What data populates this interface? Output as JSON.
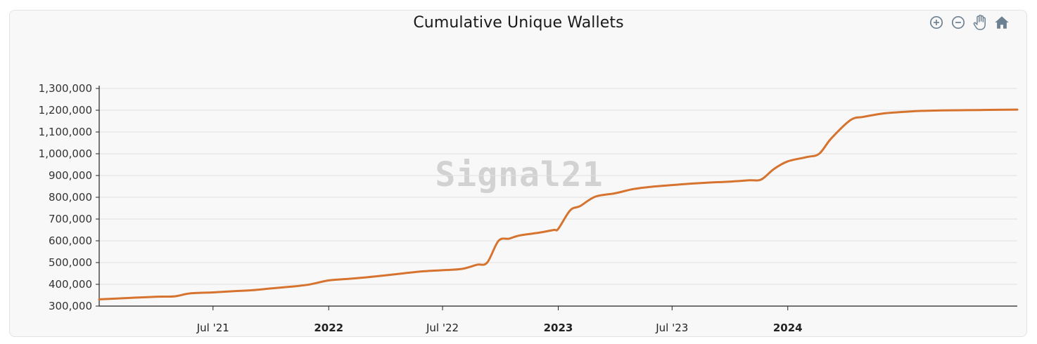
{
  "title": "Cumulative Unique Wallets",
  "watermark": "Signal21",
  "toolbar": {
    "zoom_in": "zoom-in-icon",
    "zoom_out": "zoom-out-icon",
    "pan": "pan-hand-icon",
    "reset": "home-icon"
  },
  "colors": {
    "line": "#d5732f",
    "grid": "#e1e1e1",
    "axis": "#222222",
    "watermark": "#d2d2d2"
  },
  "chart_data": {
    "type": "line",
    "title": "Cumulative Unique Wallets",
    "xlabel": "",
    "ylabel": "",
    "ylim": [
      300000,
      1300000
    ],
    "xlim": [
      "2021-01-01",
      "2024-12-31"
    ],
    "grid": true,
    "legend": "none",
    "y_ticks": [
      "1,300,000",
      "1,200,000",
      "1,100,000",
      "1,000,000",
      "900,000",
      "800,000",
      "700,000",
      "600,000",
      "500,000",
      "400,000",
      "300,000"
    ],
    "y_tick_values": [
      1300000,
      1200000,
      1100000,
      1000000,
      900000,
      800000,
      700000,
      600000,
      500000,
      400000,
      300000
    ],
    "x_ticks": [
      {
        "label": "Jul '21",
        "date": "2021-07-01",
        "bold": false
      },
      {
        "label": "2022",
        "date": "2022-01-01",
        "bold": true
      },
      {
        "label": "Jul '22",
        "date": "2022-07-01",
        "bold": false
      },
      {
        "label": "2023",
        "date": "2023-01-01",
        "bold": true
      },
      {
        "label": "Jul '23",
        "date": "2023-07-01",
        "bold": false
      },
      {
        "label": "2024",
        "date": "2024-01-01",
        "bold": true
      }
    ],
    "series": [
      {
        "points": [
          [
            "2021-01-01",
            331000
          ],
          [
            "2021-02-01",
            335000
          ],
          [
            "2021-03-01",
            339000
          ],
          [
            "2021-04-01",
            343000
          ],
          [
            "2021-05-01",
            345000
          ],
          [
            "2021-05-25",
            358000
          ],
          [
            "2021-07-01",
            363000
          ],
          [
            "2021-08-01",
            368000
          ],
          [
            "2021-09-01",
            373000
          ],
          [
            "2021-10-01",
            381000
          ],
          [
            "2021-11-01",
            389000
          ],
          [
            "2021-12-01",
            399000
          ],
          [
            "2022-01-01",
            418000
          ],
          [
            "2022-02-01",
            425000
          ],
          [
            "2022-03-01",
            432000
          ],
          [
            "2022-04-01",
            441000
          ],
          [
            "2022-05-01",
            451000
          ],
          [
            "2022-06-01",
            460000
          ],
          [
            "2022-07-01",
            465000
          ],
          [
            "2022-08-01",
            471000
          ],
          [
            "2022-08-25",
            490000
          ],
          [
            "2022-09-10",
            500000
          ],
          [
            "2022-09-28",
            600000
          ],
          [
            "2022-10-15",
            610000
          ],
          [
            "2022-11-01",
            625000
          ],
          [
            "2022-12-01",
            637000
          ],
          [
            "2022-12-25",
            650000
          ],
          [
            "2023-01-01",
            655000
          ],
          [
            "2023-01-20",
            740000
          ],
          [
            "2023-02-05",
            760000
          ],
          [
            "2023-03-01",
            803000
          ],
          [
            "2023-04-01",
            818000
          ],
          [
            "2023-05-01",
            838000
          ],
          [
            "2023-06-01",
            849000
          ],
          [
            "2023-07-01",
            856000
          ],
          [
            "2023-08-01",
            863000
          ],
          [
            "2023-09-01",
            868000
          ],
          [
            "2023-10-01",
            872000
          ],
          [
            "2023-11-01",
            878000
          ],
          [
            "2023-11-20",
            882000
          ],
          [
            "2023-12-10",
            930000
          ],
          [
            "2024-01-01",
            965000
          ],
          [
            "2024-02-01",
            985000
          ],
          [
            "2024-02-20",
            1000000
          ],
          [
            "2024-03-10",
            1070000
          ],
          [
            "2024-04-10",
            1155000
          ],
          [
            "2024-05-01",
            1170000
          ],
          [
            "2024-06-01",
            1185000
          ],
          [
            "2024-07-01",
            1192000
          ],
          [
            "2024-08-01",
            1197000
          ],
          [
            "2024-09-01",
            1199000
          ],
          [
            "2024-10-01",
            1200000
          ],
          [
            "2024-11-01",
            1201000
          ],
          [
            "2024-12-31",
            1203000
          ]
        ]
      }
    ]
  }
}
